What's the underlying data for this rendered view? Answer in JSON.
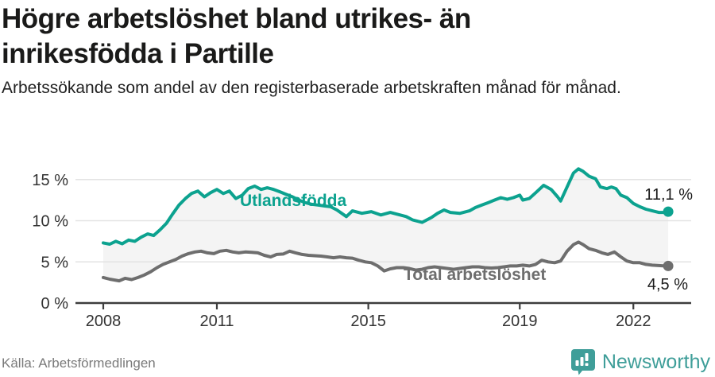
{
  "header": {
    "title": "Högre arbetslöshet bland utrikes- än inrikesfödda i Partille",
    "subtitle": "Arbetssökande som andel av den registerbaserade arbetskraften månad för månad."
  },
  "footer": {
    "source": "Källa: Arbetsförmedlingen",
    "brand": "Newsworthy",
    "brand_icon": "newsworthy-speech-bubble-bar-chart-icon"
  },
  "colors": {
    "title_text": "#1a1a19",
    "subtitle_text": "#222222",
    "axis_text": "#333333",
    "gridline": "#e3e3e3",
    "axis_line": "#3d3d3d",
    "series_utlandsfodda": "#0ca28f",
    "series_total": "#6e6e6e",
    "between_area_fill": "#f4f4f4",
    "end_label_text": "#1a1a1a",
    "source_text": "#7a7a7a",
    "brand_teal": "#3f9e99"
  },
  "chart_data": {
    "type": "line",
    "title": "Högre arbetslöshet bland utrikes- än inrikesfödda i Partille",
    "xlabel": "",
    "ylabel": "",
    "unit": "%",
    "xlim": [
      2007.6,
      2023.5
    ],
    "ylim": [
      0,
      17.5
    ],
    "grid": "horizontal",
    "legend": "inline-labels-on-lines",
    "x_ticks": [
      2008,
      2011,
      2015,
      2019,
      2022
    ],
    "y_ticks": [
      {
        "value": 0,
        "label": "0 %"
      },
      {
        "value": 5,
        "label": "5 %"
      },
      {
        "value": 10,
        "label": "10 %"
      },
      {
        "value": 15,
        "label": "15 %"
      }
    ],
    "series": [
      {
        "name": "Utlandsfödda",
        "color": "#0ca28f",
        "end_label": "11,1 %",
        "end_value": 11.1,
        "points": [
          [
            2008.0,
            7.3
          ],
          [
            2008.17,
            7.15
          ],
          [
            2008.33,
            7.5
          ],
          [
            2008.5,
            7.2
          ],
          [
            2008.67,
            7.65
          ],
          [
            2008.83,
            7.5
          ],
          [
            2009.0,
            8.0
          ],
          [
            2009.17,
            8.4
          ],
          [
            2009.33,
            8.2
          ],
          [
            2009.5,
            8.9
          ],
          [
            2009.67,
            9.7
          ],
          [
            2009.83,
            10.8
          ],
          [
            2010.0,
            11.9
          ],
          [
            2010.17,
            12.7
          ],
          [
            2010.33,
            13.3
          ],
          [
            2010.5,
            13.6
          ],
          [
            2010.67,
            12.9
          ],
          [
            2010.83,
            13.4
          ],
          [
            2011.0,
            13.8
          ],
          [
            2011.17,
            13.3
          ],
          [
            2011.33,
            13.6
          ],
          [
            2011.5,
            12.7
          ],
          [
            2011.67,
            13.1
          ],
          [
            2011.83,
            13.9
          ],
          [
            2012.0,
            14.2
          ],
          [
            2012.17,
            13.8
          ],
          [
            2012.33,
            14.0
          ],
          [
            2012.5,
            13.8
          ],
          [
            2012.67,
            13.5
          ],
          [
            2012.83,
            13.2
          ],
          [
            2013.0,
            12.9
          ],
          [
            2013.17,
            12.5
          ],
          [
            2013.33,
            12.2
          ],
          [
            2013.5,
            12.0
          ],
          [
            2013.67,
            11.9
          ],
          [
            2013.83,
            11.8
          ],
          [
            2014.0,
            11.7
          ],
          [
            2014.17,
            11.3
          ],
          [
            2014.42,
            10.5
          ],
          [
            2014.58,
            11.2
          ],
          [
            2014.83,
            10.9
          ],
          [
            2015.08,
            11.1
          ],
          [
            2015.33,
            10.7
          ],
          [
            2015.58,
            11.0
          ],
          [
            2015.75,
            10.8
          ],
          [
            2016.0,
            10.5
          ],
          [
            2016.17,
            10.1
          ],
          [
            2016.42,
            9.8
          ],
          [
            2016.67,
            10.4
          ],
          [
            2016.83,
            10.9
          ],
          [
            2017.0,
            11.3
          ],
          [
            2017.17,
            11.0
          ],
          [
            2017.42,
            10.9
          ],
          [
            2017.67,
            11.2
          ],
          [
            2017.83,
            11.6
          ],
          [
            2018.0,
            11.9
          ],
          [
            2018.17,
            12.2
          ],
          [
            2018.33,
            12.5
          ],
          [
            2018.5,
            12.8
          ],
          [
            2018.67,
            12.6
          ],
          [
            2018.83,
            12.8
          ],
          [
            2019.0,
            13.1
          ],
          [
            2019.08,
            12.5
          ],
          [
            2019.25,
            12.7
          ],
          [
            2019.42,
            13.4
          ],
          [
            2019.63,
            14.3
          ],
          [
            2019.83,
            13.8
          ],
          [
            2020.0,
            12.9
          ],
          [
            2020.08,
            12.4
          ],
          [
            2020.25,
            14.1
          ],
          [
            2020.42,
            15.8
          ],
          [
            2020.55,
            16.3
          ],
          [
            2020.67,
            16.0
          ],
          [
            2020.83,
            15.4
          ],
          [
            2021.0,
            15.1
          ],
          [
            2021.13,
            14.1
          ],
          [
            2021.3,
            13.9
          ],
          [
            2021.42,
            14.1
          ],
          [
            2021.54,
            13.9
          ],
          [
            2021.67,
            13.1
          ],
          [
            2021.83,
            12.8
          ],
          [
            2022.0,
            12.1
          ],
          [
            2022.17,
            11.7
          ],
          [
            2022.33,
            11.4
          ],
          [
            2022.5,
            11.2
          ],
          [
            2022.67,
            11.0
          ],
          [
            2022.83,
            11.0
          ],
          [
            2022.92,
            11.1
          ]
        ]
      },
      {
        "name": "Total arbetslöshet",
        "color": "#6e6e6e",
        "end_label": "4,5 %",
        "end_value": 4.5,
        "points": [
          [
            2008.0,
            3.1
          ],
          [
            2008.17,
            2.9
          ],
          [
            2008.42,
            2.7
          ],
          [
            2008.58,
            3.0
          ],
          [
            2008.75,
            2.85
          ],
          [
            2008.92,
            3.1
          ],
          [
            2009.08,
            3.4
          ],
          [
            2009.25,
            3.8
          ],
          [
            2009.42,
            4.3
          ],
          [
            2009.58,
            4.7
          ],
          [
            2009.75,
            5.0
          ],
          [
            2009.92,
            5.3
          ],
          [
            2010.08,
            5.7
          ],
          [
            2010.25,
            6.0
          ],
          [
            2010.42,
            6.2
          ],
          [
            2010.58,
            6.3
          ],
          [
            2010.75,
            6.1
          ],
          [
            2010.92,
            6.0
          ],
          [
            2011.08,
            6.3
          ],
          [
            2011.25,
            6.4
          ],
          [
            2011.42,
            6.2
          ],
          [
            2011.58,
            6.1
          ],
          [
            2011.75,
            6.2
          ],
          [
            2011.92,
            6.15
          ],
          [
            2012.08,
            6.1
          ],
          [
            2012.25,
            5.8
          ],
          [
            2012.42,
            5.6
          ],
          [
            2012.58,
            5.9
          ],
          [
            2012.75,
            5.95
          ],
          [
            2012.92,
            6.3
          ],
          [
            2013.08,
            6.1
          ],
          [
            2013.25,
            5.9
          ],
          [
            2013.42,
            5.8
          ],
          [
            2013.58,
            5.75
          ],
          [
            2013.75,
            5.7
          ],
          [
            2013.92,
            5.6
          ],
          [
            2014.08,
            5.5
          ],
          [
            2014.25,
            5.6
          ],
          [
            2014.42,
            5.5
          ],
          [
            2014.58,
            5.45
          ],
          [
            2014.75,
            5.2
          ],
          [
            2014.92,
            5.0
          ],
          [
            2015.08,
            4.9
          ],
          [
            2015.25,
            4.5
          ],
          [
            2015.42,
            3.9
          ],
          [
            2015.58,
            4.15
          ],
          [
            2015.75,
            4.3
          ],
          [
            2015.92,
            4.3
          ],
          [
            2016.08,
            4.2
          ],
          [
            2016.25,
            4.0
          ],
          [
            2016.42,
            4.1
          ],
          [
            2016.58,
            4.3
          ],
          [
            2016.75,
            4.4
          ],
          [
            2016.92,
            4.3
          ],
          [
            2017.08,
            4.2
          ],
          [
            2017.25,
            4.1
          ],
          [
            2017.42,
            4.2
          ],
          [
            2017.58,
            4.3
          ],
          [
            2017.75,
            4.4
          ],
          [
            2017.92,
            4.4
          ],
          [
            2018.08,
            4.3
          ],
          [
            2018.25,
            4.25
          ],
          [
            2018.42,
            4.3
          ],
          [
            2018.58,
            4.4
          ],
          [
            2018.75,
            4.5
          ],
          [
            2018.92,
            4.5
          ],
          [
            2019.08,
            4.6
          ],
          [
            2019.25,
            4.5
          ],
          [
            2019.42,
            4.7
          ],
          [
            2019.58,
            5.2
          ],
          [
            2019.75,
            5.0
          ],
          [
            2019.92,
            4.9
          ],
          [
            2020.08,
            5.1
          ],
          [
            2020.25,
            6.3
          ],
          [
            2020.42,
            7.1
          ],
          [
            2020.55,
            7.4
          ],
          [
            2020.67,
            7.1
          ],
          [
            2020.83,
            6.6
          ],
          [
            2021.0,
            6.4
          ],
          [
            2021.17,
            6.1
          ],
          [
            2021.33,
            5.9
          ],
          [
            2021.5,
            6.2
          ],
          [
            2021.67,
            5.6
          ],
          [
            2021.83,
            5.1
          ],
          [
            2022.0,
            4.9
          ],
          [
            2022.17,
            4.9
          ],
          [
            2022.33,
            4.7
          ],
          [
            2022.5,
            4.6
          ],
          [
            2022.67,
            4.55
          ],
          [
            2022.83,
            4.5
          ],
          [
            2022.92,
            4.5
          ]
        ]
      }
    ]
  }
}
